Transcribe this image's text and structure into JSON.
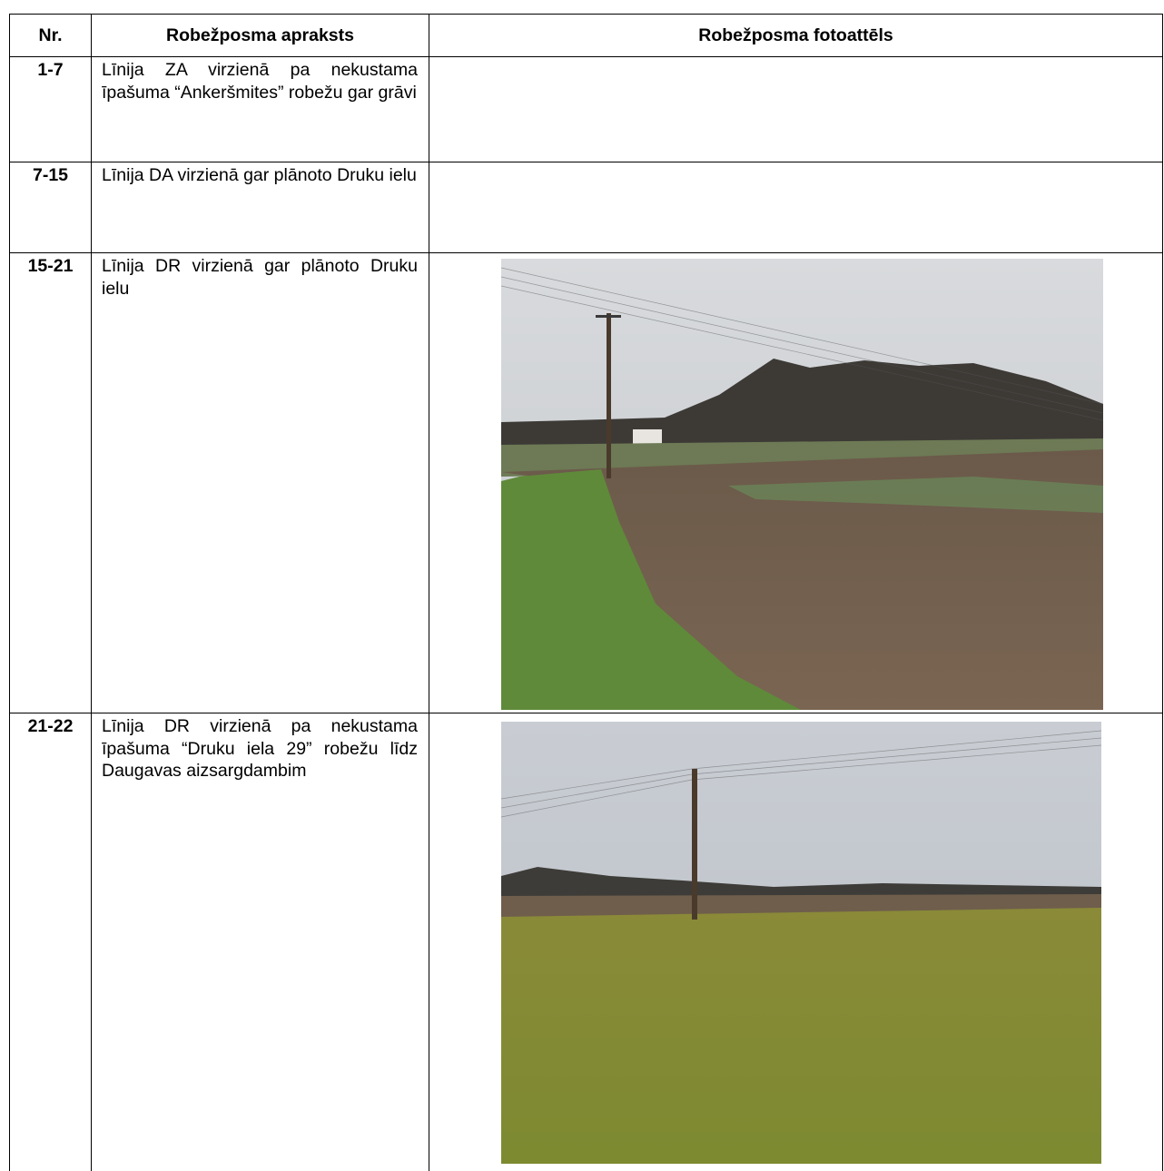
{
  "table": {
    "header": [
      "Nr.",
      "Robežposma apraksts",
      "Robežposma fotoattēls"
    ],
    "rows": [
      [
        "1-7",
        "Līnija ZA virzienā pa nekustama īpašuma “Ankeršmites” robežu gar grāvi"
      ],
      [
        "7-15",
        "Līnija DA virzienā gar plānoto Druku ielu"
      ],
      [
        "15-21",
        "Līnija DR virzienā gar plānoto Druku ielu"
      ],
      [
        "21-22",
        "Līnija DR virzienā pa nekustama īpašuma “Druku iela 29” robežu līdz Daugavas aizsargdambim"
      ]
    ]
  }
}
